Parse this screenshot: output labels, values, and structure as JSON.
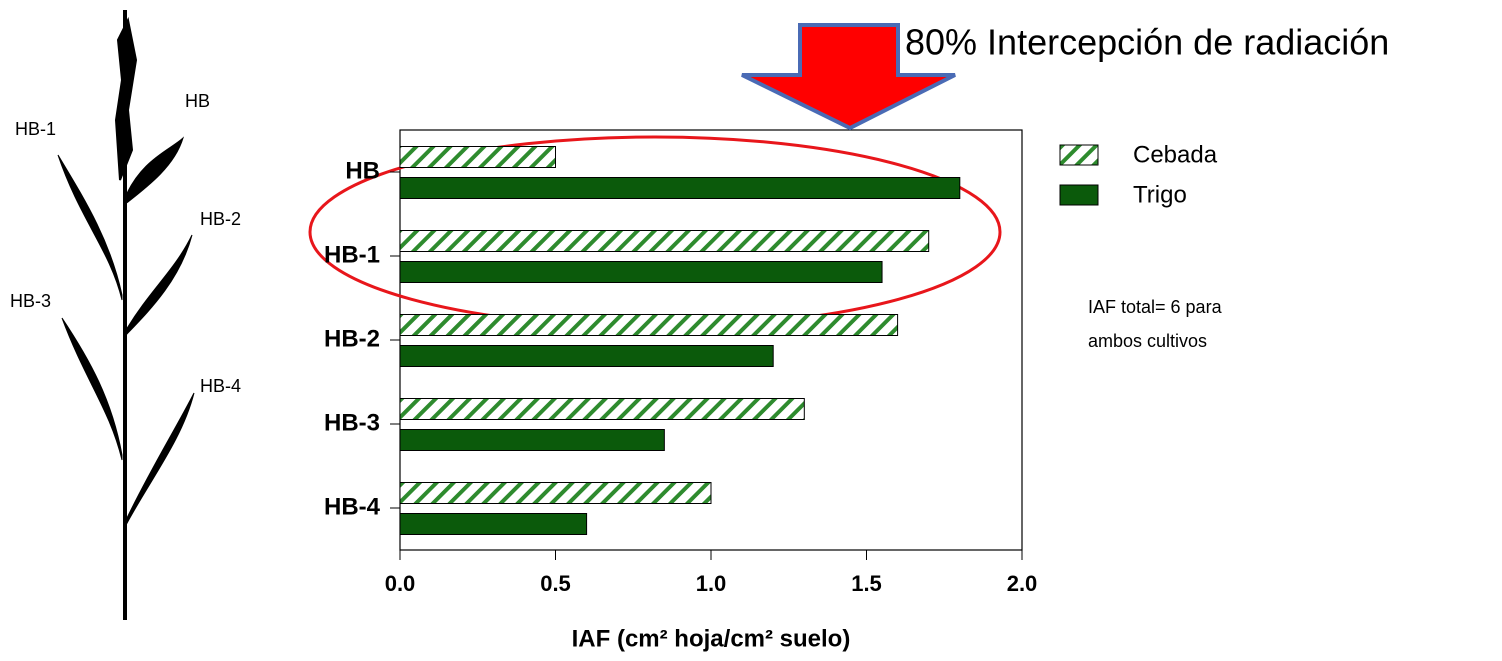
{
  "chart_data": {
    "type": "hbar",
    "categories": [
      "HB",
      "HB-1",
      "HB-2",
      "HB-3",
      "HB-4"
    ],
    "series": [
      {
        "name": "Cebada",
        "color": "#2e8b2e",
        "hatch": true,
        "values": [
          0.5,
          1.7,
          1.6,
          1.3,
          1.0
        ]
      },
      {
        "name": "Trigo",
        "color": "#0b5a0b",
        "hatch": false,
        "values": [
          1.8,
          1.55,
          1.2,
          0.85,
          0.6
        ]
      }
    ],
    "xlabel": "IAF (cm² hoja/cm² suelo)",
    "xlim": [
      0,
      2
    ],
    "xticks": [
      {
        "value": 0,
        "label": "0.0"
      },
      0.5,
      {
        "value": 1,
        "label": "1.0"
      },
      1.5,
      {
        "value": 2,
        "label": "2.0"
      }
    ],
    "grid": false,
    "legend": "right",
    "annotation": "80% Intercepción de radiación",
    "note": [
      "IAF total= 6 para",
      "ambos cultivos"
    ]
  },
  "plant_labels": [
    "HB",
    "HB-1",
    "HB-2",
    "HB-3",
    "HB-4"
  ]
}
